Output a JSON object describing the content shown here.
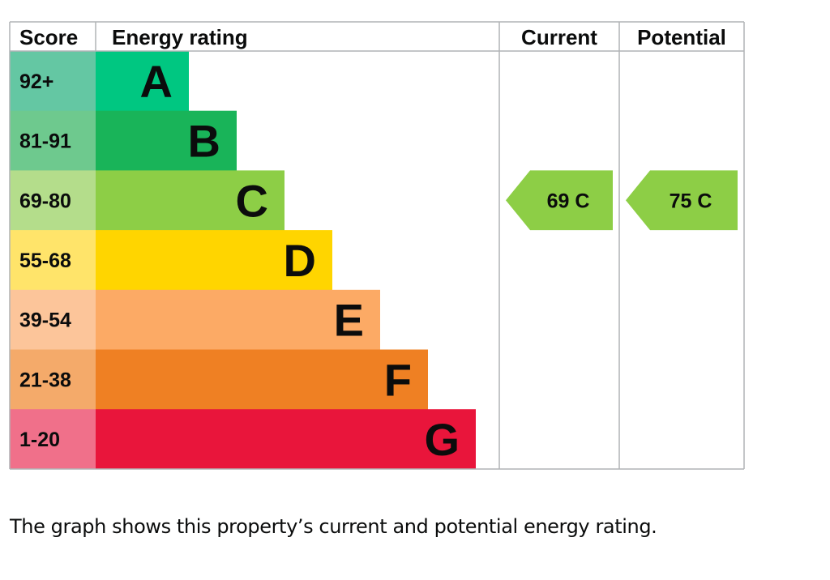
{
  "chart_data": {
    "type": "bar",
    "headers": {
      "score": "Score",
      "rating": "Energy rating",
      "current": "Current",
      "potential": "Potential"
    },
    "bands": [
      {
        "letter": "A",
        "range": "92+",
        "min": 92,
        "color": "#00c781",
        "score_color": "#64c7a3"
      },
      {
        "letter": "B",
        "range": "81-91",
        "min": 81,
        "color": "#19b459",
        "score_color": "#6ec98e"
      },
      {
        "letter": "C",
        "range": "69-80",
        "min": 69,
        "color": "#8dce46",
        "score_color": "#b4dd8b"
      },
      {
        "letter": "D",
        "range": "55-68",
        "min": 55,
        "color": "#ffd500",
        "score_color": "#ffe46a"
      },
      {
        "letter": "E",
        "range": "39-54",
        "min": 39,
        "color": "#fcaa65",
        "score_color": "#fcc59a"
      },
      {
        "letter": "F",
        "range": "21-38",
        "min": 21,
        "color": "#ef8023",
        "score_color": "#f4aa6a"
      },
      {
        "letter": "G",
        "range": "1-20",
        "min": 1,
        "color": "#e9153b",
        "score_color": "#f0708a"
      }
    ],
    "current": {
      "value": 69,
      "letter": "C",
      "label": "69  C"
    },
    "potential": {
      "value": 75,
      "letter": "C",
      "label": "75  C"
    }
  },
  "caption": "The graph shows this property’s current and potential energy rating."
}
